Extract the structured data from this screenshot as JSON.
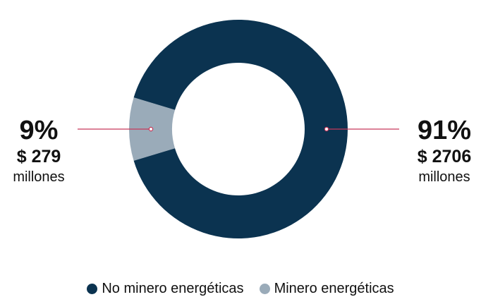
{
  "chart_data": {
    "type": "pie",
    "donut": true,
    "title": "",
    "series": [
      {
        "name": "No minero energéticas",
        "percent_label": "91%",
        "amount_label": "$ 2706",
        "unit_label": "millones",
        "value": 2706,
        "percent": 91,
        "color": "#0b3350"
      },
      {
        "name": "Minero energéticas",
        "percent_label": "9%",
        "amount_label": "$ 279",
        "unit_label": "millones",
        "value": 279,
        "percent": 9,
        "color": "#9aabb9"
      }
    ],
    "legend_position": "bottom",
    "leader_color": "#c8385a"
  }
}
